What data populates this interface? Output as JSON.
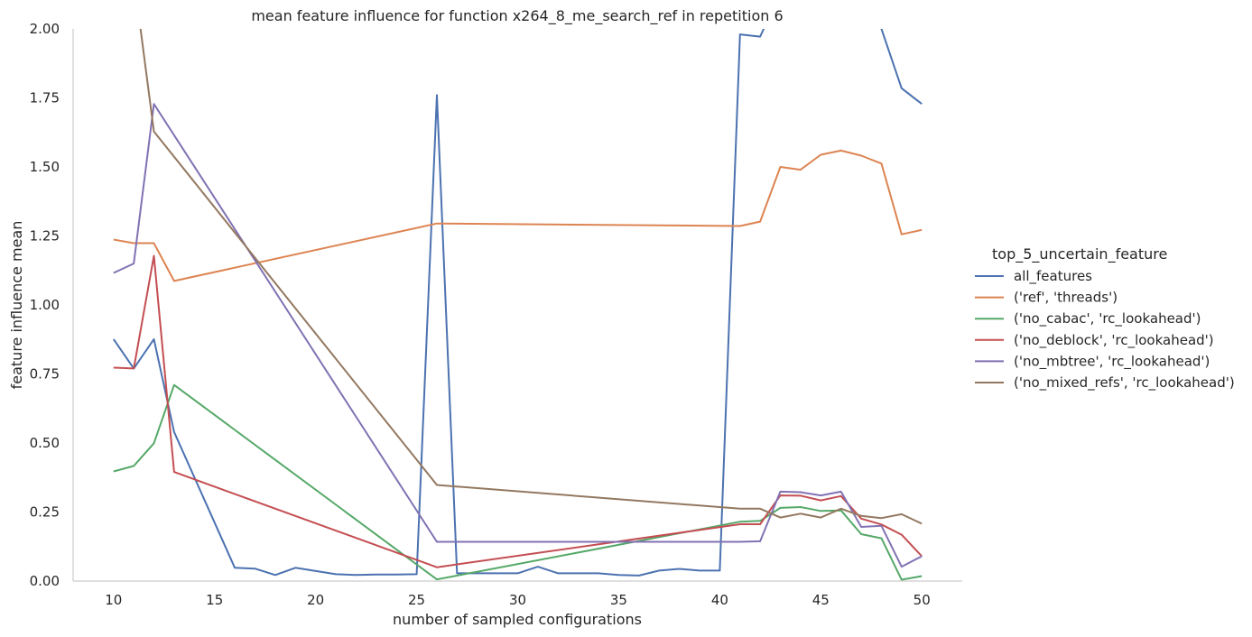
{
  "chart_data": {
    "type": "line",
    "title": "mean feature influence for function x264_8_me_search_ref in repetition 6",
    "xlabel": "number of sampled configurations",
    "ylabel": "feature influence mean",
    "xlim": [
      8,
      52
    ],
    "ylim": [
      0,
      2.0
    ],
    "xticks": [
      "10",
      "15",
      "20",
      "25",
      "30",
      "35",
      "40",
      "45",
      "50"
    ],
    "yticks": [
      "0.00",
      "0.25",
      "0.50",
      "0.75",
      "1.00",
      "1.25",
      "1.50",
      "1.75",
      "2.00"
    ],
    "grid": false,
    "legend": {
      "title": "top_5_uncertain_feature",
      "placement": "right"
    },
    "series": [
      {
        "name": "all_features",
        "color": "#4c72b0",
        "points": [
          [
            10,
            0.876
          ],
          [
            11,
            0.77
          ],
          [
            12,
            0.876
          ],
          [
            13,
            0.54
          ],
          [
            16,
            0.048
          ],
          [
            17,
            0.045
          ],
          [
            18,
            0.022
          ],
          [
            19,
            0.048
          ],
          [
            21,
            0.025
          ],
          [
            22,
            0.022
          ],
          [
            23,
            0.024
          ],
          [
            24,
            0.024
          ],
          [
            25,
            0.025
          ],
          [
            26,
            1.76
          ],
          [
            27,
            0.028
          ],
          [
            28,
            0.028
          ],
          [
            29,
            0.028
          ],
          [
            30,
            0.028
          ],
          [
            31,
            0.052
          ],
          [
            32,
            0.028
          ],
          [
            34,
            0.028
          ],
          [
            35,
            0.022
          ],
          [
            36,
            0.02
          ],
          [
            37,
            0.038
          ],
          [
            38,
            0.044
          ],
          [
            39,
            0.038
          ],
          [
            40,
            0.038
          ],
          [
            41,
            1.98
          ],
          [
            42,
            1.972
          ],
          [
            42.3,
            2.02
          ],
          [
            47.8,
            2.02
          ],
          [
            48,
            2.0
          ],
          [
            49,
            1.785
          ],
          [
            50,
            1.728
          ]
        ]
      },
      {
        "name": "('ref', 'threads')",
        "color": "#dd8452",
        "points": [
          [
            10,
            1.237
          ],
          [
            11,
            1.224
          ],
          [
            12,
            1.224
          ],
          [
            13,
            1.087
          ],
          [
            26,
            1.295
          ],
          [
            41,
            1.286
          ],
          [
            42,
            1.302
          ],
          [
            43,
            1.5
          ],
          [
            44,
            1.49
          ],
          [
            45,
            1.544
          ],
          [
            46,
            1.559
          ],
          [
            47,
            1.541
          ],
          [
            48,
            1.512
          ],
          [
            49,
            1.256
          ],
          [
            50,
            1.272
          ]
        ]
      },
      {
        "name": "('no_cabac', 'rc_lookahead')",
        "color": "#55a868",
        "points": [
          [
            10,
            0.397
          ],
          [
            11,
            0.417
          ],
          [
            12,
            0.499
          ],
          [
            13,
            0.71
          ],
          [
            26,
            0.006
          ],
          [
            41,
            0.215
          ],
          [
            42,
            0.218
          ],
          [
            43,
            0.265
          ],
          [
            44,
            0.268
          ],
          [
            45,
            0.254
          ],
          [
            46,
            0.256
          ],
          [
            47,
            0.17
          ],
          [
            48,
            0.155
          ],
          [
            49,
            0.005
          ],
          [
            50,
            0.018
          ]
        ]
      },
      {
        "name": "('no_deblock', 'rc_lookahead')",
        "color": "#c44e52",
        "points": [
          [
            10,
            0.773
          ],
          [
            11,
            0.77
          ],
          [
            12,
            1.178
          ],
          [
            13,
            0.395
          ],
          [
            26,
            0.05
          ],
          [
            41,
            0.206
          ],
          [
            42,
            0.206
          ],
          [
            43,
            0.31
          ],
          [
            44,
            0.309
          ],
          [
            45,
            0.292
          ],
          [
            46,
            0.308
          ],
          [
            47,
            0.226
          ],
          [
            48,
            0.205
          ],
          [
            49,
            0.168
          ],
          [
            50,
            0.09
          ]
        ]
      },
      {
        "name": "('no_mbtree', 'rc_lookahead')",
        "color": "#8172b3",
        "points": [
          [
            10,
            1.116
          ],
          [
            11,
            1.15
          ],
          [
            12,
            1.728
          ],
          [
            26,
            0.142
          ],
          [
            41,
            0.142
          ],
          [
            42,
            0.144
          ],
          [
            43,
            0.324
          ],
          [
            44,
            0.322
          ],
          [
            45,
            0.31
          ],
          [
            46,
            0.324
          ],
          [
            47,
            0.196
          ],
          [
            48,
            0.2
          ],
          [
            49,
            0.052
          ],
          [
            50,
            0.09
          ]
        ]
      },
      {
        "name": "('no_mixed_refs', 'rc_lookahead')",
        "color": "#937860",
        "points": [
          [
            11.3,
            2.02
          ],
          [
            12,
            1.628
          ],
          [
            26,
            0.348
          ],
          [
            41,
            0.262
          ],
          [
            42,
            0.262
          ],
          [
            43,
            0.23
          ],
          [
            44,
            0.244
          ],
          [
            45,
            0.23
          ],
          [
            46,
            0.262
          ],
          [
            47,
            0.236
          ],
          [
            48,
            0.228
          ],
          [
            49,
            0.242
          ],
          [
            50,
            0.208
          ]
        ]
      }
    ]
  }
}
